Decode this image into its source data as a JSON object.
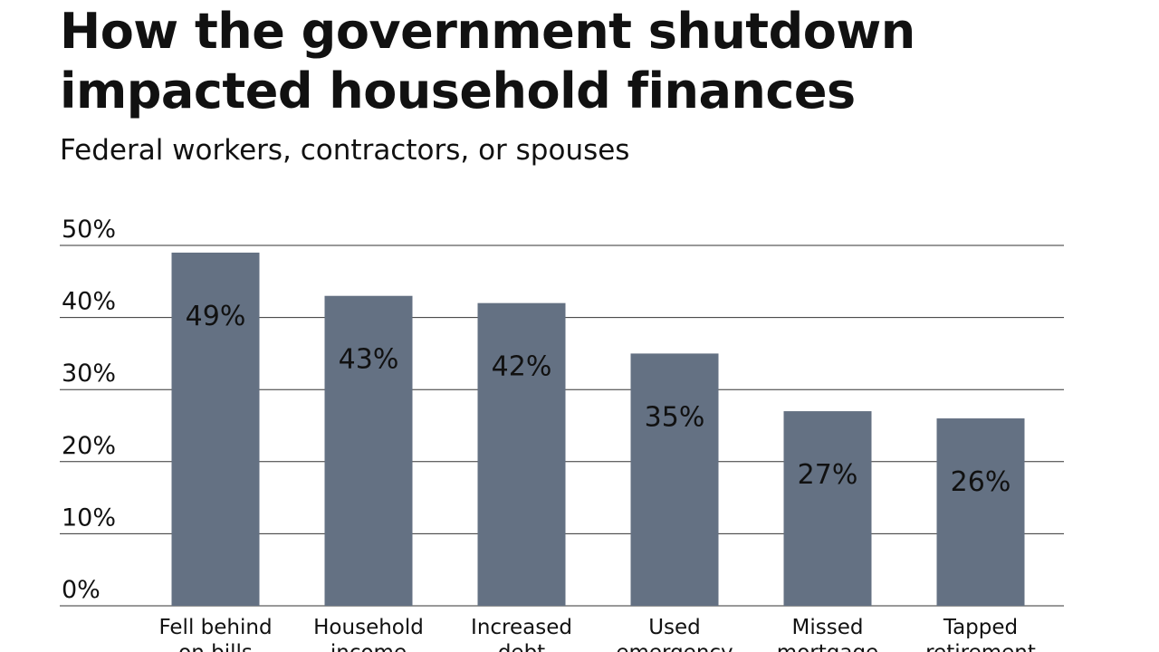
{
  "chart_data": {
    "type": "bar",
    "title": "How the government shutdown impacted household finances",
    "subtitle": "Federal workers, contractors, or spouses",
    "categories": [
      [
        "Fell behind",
        "on bills"
      ],
      [
        "Household",
        "income"
      ],
      [
        "Increased",
        "debt"
      ],
      [
        "Used",
        "emergency"
      ],
      [
        "Missed",
        "mortgage"
      ],
      [
        "Tapped",
        "retirement"
      ]
    ],
    "values": [
      49,
      43,
      42,
      35,
      27,
      26
    ],
    "data_labels": [
      "49%",
      "43%",
      "42%",
      "35%",
      "27%",
      "26%"
    ],
    "yticks": [
      "0%",
      "10%",
      "20%",
      "30%",
      "40%",
      "50%"
    ],
    "ylim": [
      0,
      50
    ],
    "grid": true,
    "bar_color": "#647183"
  }
}
